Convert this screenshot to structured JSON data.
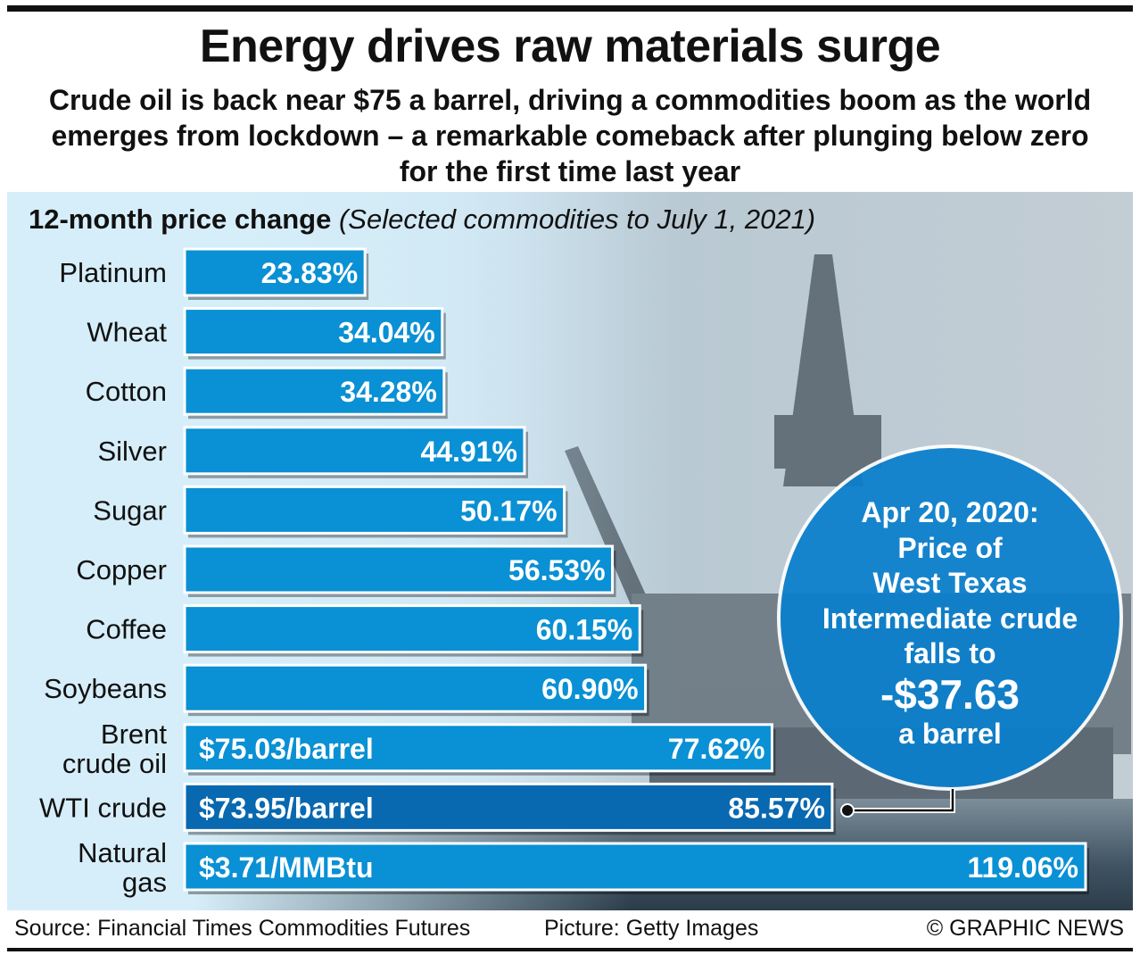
{
  "title": "Energy drives raw materials surge",
  "subtitle": "Crude oil is back near $75 a barrel, driving a commodities boom as the world emerges from lockdown – a remarkable comeback after plunging below zero for the first time last year",
  "chart_label": {
    "bold": "12-month price change",
    "italic": "(Selected commodities to July 1, 2021)"
  },
  "colors": {
    "bar": "#0a90d4",
    "bar_highlight": "#0868b0",
    "circle": "#0a7fcc",
    "text": "#111111"
  },
  "chart_data": {
    "type": "bar",
    "orientation": "horizontal",
    "unit": "%",
    "categories": [
      "Platinum",
      "Wheat",
      "Cotton",
      "Silver",
      "Sugar",
      "Copper",
      "Coffee",
      "Soybeans",
      "Brent crude oil",
      "WTI crude",
      "Natural gas"
    ],
    "category_lines": [
      [
        "Platinum"
      ],
      [
        "Wheat"
      ],
      [
        "Cotton"
      ],
      [
        "Silver"
      ],
      [
        "Sugar"
      ],
      [
        "Copper"
      ],
      [
        "Coffee"
      ],
      [
        "Soybeans"
      ],
      [
        "Brent",
        "crude oil"
      ],
      [
        "WTI crude"
      ],
      [
        "Natural",
        "gas"
      ]
    ],
    "values": [
      23.83,
      34.04,
      34.28,
      44.91,
      50.17,
      56.53,
      60.15,
      60.9,
      77.62,
      85.57,
      119.06
    ],
    "value_labels": [
      "23.83%",
      "34.04%",
      "34.28%",
      "44.91%",
      "50.17%",
      "56.53%",
      "60.15%",
      "60.90%",
      "77.62%",
      "85.57%",
      "119.06%"
    ],
    "price_labels": [
      "",
      "",
      "",
      "",
      "",
      "",
      "",
      "",
      "$75.03/barrel",
      "$73.95/barrel",
      "$3.71/MMBtu"
    ],
    "highlight": "WTI crude",
    "xlim": [
      0,
      119.06
    ]
  },
  "callout": {
    "lines": [
      "Apr 20, 2020:",
      "Price of",
      "West Texas",
      "Intermediate crude",
      "falls to"
    ],
    "value": "-$37.63",
    "suffix": "a barrel"
  },
  "footer": {
    "source": "Source: Financial Times Commodities Futures",
    "picture": "Picture: Getty Images",
    "credit": "© GRAPHIC NEWS"
  }
}
